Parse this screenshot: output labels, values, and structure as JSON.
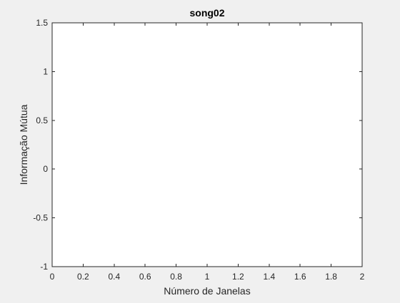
{
  "chart_data": {
    "type": "line",
    "title": "song02",
    "xlabel": "Número de Janelas",
    "ylabel": "Informação Mútua",
    "xlim": [
      0,
      2
    ],
    "ylim": [
      -1,
      1.5
    ],
    "xticks": [
      0,
      0.2,
      0.4,
      0.6,
      0.8,
      1,
      1.2,
      1.4,
      1.6,
      1.8,
      2
    ],
    "xtick_labels": [
      "0",
      "0.2",
      "0.4",
      "0.6",
      "0.8",
      "1",
      "1.2",
      "1.4",
      "1.6",
      "1.8",
      "2"
    ],
    "yticks": [
      -1,
      -0.5,
      0,
      0.5,
      1,
      1.5
    ],
    "ytick_labels": [
      "-1",
      "-0.5",
      "0",
      "0.5",
      "1",
      "1.5"
    ],
    "series": [],
    "grid": false,
    "box": true
  },
  "colors": {
    "figure_background": "#f0f0f0",
    "axes_background": "#ffffff",
    "axis_color": "#262626"
  }
}
